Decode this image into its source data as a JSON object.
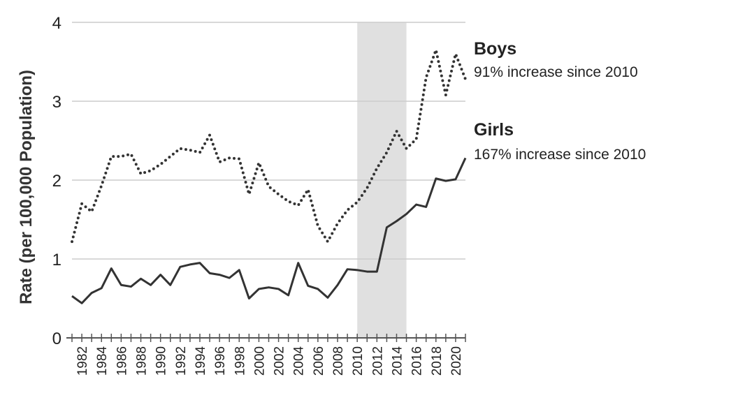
{
  "chart_data": {
    "type": "line",
    "title": "",
    "xlabel": "",
    "ylabel": "Rate (per 100,000 Population)",
    "xlim": [
      1981,
      2021
    ],
    "ylim": [
      0,
      4
    ],
    "yticks": [
      0,
      1,
      2,
      3,
      4
    ],
    "xticks": [
      1982,
      1984,
      1986,
      1988,
      1990,
      1992,
      1994,
      1996,
      1998,
      2000,
      2002,
      2004,
      2006,
      2008,
      2010,
      2012,
      2014,
      2016,
      2018,
      2020
    ],
    "grid": true,
    "shaded_region": [
      2010,
      2015
    ],
    "x": [
      1981,
      1982,
      1983,
      1984,
      1985,
      1986,
      1987,
      1988,
      1989,
      1990,
      1991,
      1992,
      1993,
      1994,
      1995,
      1996,
      1997,
      1998,
      1999,
      2000,
      2001,
      2002,
      2003,
      2004,
      2005,
      2006,
      2007,
      2008,
      2009,
      2010,
      2011,
      2012,
      2013,
      2014,
      2015,
      2016,
      2017,
      2018,
      2019,
      2020,
      2021
    ],
    "series": [
      {
        "name": "Boys",
        "note": "91% increase since 2010",
        "style": "dotted",
        "values": [
          1.22,
          1.7,
          1.6,
          1.93,
          2.3,
          2.3,
          2.33,
          2.08,
          2.12,
          2.2,
          2.3,
          2.4,
          2.38,
          2.35,
          2.57,
          2.23,
          2.28,
          2.27,
          1.82,
          2.22,
          1.92,
          1.82,
          1.73,
          1.68,
          1.88,
          1.42,
          1.22,
          1.45,
          1.62,
          1.72,
          1.9,
          2.15,
          2.35,
          2.62,
          2.4,
          2.52,
          3.3,
          3.65,
          3.08,
          3.6,
          3.28
        ]
      },
      {
        "name": "Girls",
        "note": "167% increase since 2010",
        "style": "solid",
        "values": [
          0.53,
          0.44,
          0.57,
          0.63,
          0.88,
          0.67,
          0.65,
          0.75,
          0.67,
          0.8,
          0.67,
          0.9,
          0.93,
          0.95,
          0.82,
          0.8,
          0.76,
          0.86,
          0.5,
          0.62,
          0.64,
          0.62,
          0.54,
          0.95,
          0.66,
          0.62,
          0.51,
          0.67,
          0.87,
          0.86,
          0.84,
          0.84,
          1.4,
          1.48,
          1.57,
          1.69,
          1.66,
          2.02,
          1.99,
          2.01,
          2.28
        ]
      }
    ],
    "colors": {
      "line": "#333333",
      "grid": "#cccccc",
      "shade": "#e0e0e0"
    }
  }
}
